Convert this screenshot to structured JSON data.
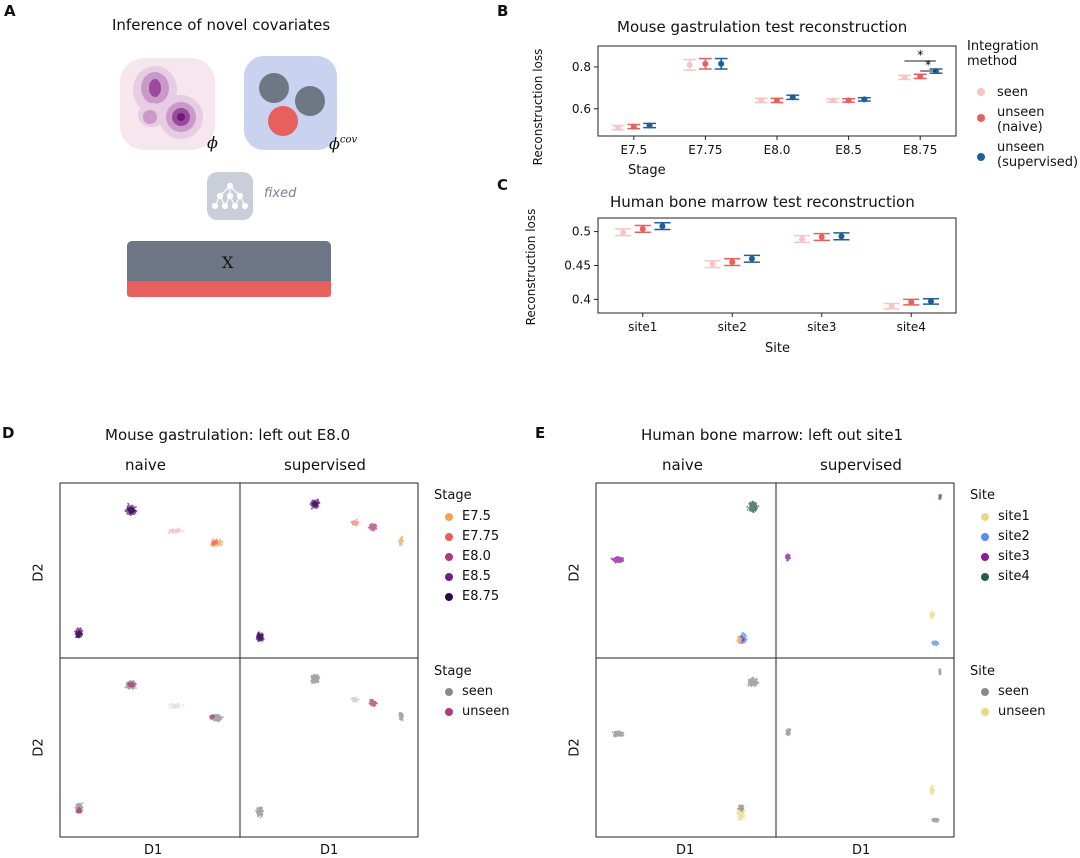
{
  "panel_a": {
    "letter": "A",
    "title": "Inference of novel covariates",
    "phi_label": "ϕ",
    "phi_cov_label": "ϕ",
    "phi_cov_sup": "cov",
    "fixed_label": "fixed",
    "x_label": "X"
  },
  "panel_b": {
    "letter": "B"
  },
  "panel_c": {
    "letter": "C"
  },
  "panel_d": {
    "letter": "D",
    "title": "Mouse gastrulation: left out E8.0",
    "col_naive": "naive",
    "col_supervised": "supervised",
    "xlabel": "D1",
    "ylabel": "D2",
    "legend1_title": "Stage",
    "legend1": [
      "E7.5",
      "E7.75",
      "E8.0",
      "E8.5",
      "E8.75"
    ],
    "legend1_colors": [
      "#f5a05a",
      "#e8605d",
      "#b03a78",
      "#6a1e8a",
      "#2c0a4a"
    ],
    "legend2_title": "Stage",
    "legend2": [
      "seen",
      "unseen"
    ],
    "legend2_colors": [
      "#8a8a8a",
      "#b03a78"
    ]
  },
  "panel_e": {
    "letter": "E",
    "title": "Human bone marrow: left out site1",
    "col_naive": "naive",
    "col_supervised": "supervised",
    "xlabel": "D1",
    "ylabel": "D2",
    "legend1_title": "Site",
    "legend1": [
      "site1",
      "site2",
      "site3",
      "site4"
    ],
    "legend1_colors": [
      "#e8d88a",
      "#5a8ee8",
      "#8a1a9a",
      "#2c5a4a"
    ],
    "legend2_title": "Site",
    "legend2": [
      "seen",
      "unseen"
    ],
    "legend2_colors": [
      "#8a8a8a",
      "#e8d88a"
    ]
  },
  "legend_bc": {
    "title": "Integration method",
    "items": [
      "seen",
      "unseen (naive)",
      "unseen (supervised)"
    ],
    "colors": [
      "#f7c4c4",
      "#e8605d",
      "#1f5f99"
    ]
  },
  "chart_data": [
    {
      "type": "scatter",
      "title": "Mouse gastrulation test reconstruction",
      "xlabel": "Stage",
      "ylabel": "Reconstruction loss",
      "categories": [
        "E7.5",
        "E7.75",
        "E8.0",
        "E8.5",
        "E8.75"
      ],
      "ylim": [
        0.47,
        0.9
      ],
      "yticks": [
        0.6,
        0.8
      ],
      "series": [
        {
          "name": "seen",
          "values": [
            0.51,
            0.81,
            0.64,
            0.64,
            0.75
          ],
          "err": [
            0.01,
            0.025,
            0.01,
            0.008,
            0.01
          ]
        },
        {
          "name": "unseen (naive)",
          "values": [
            0.515,
            0.815,
            0.64,
            0.64,
            0.755
          ],
          "err": [
            0.01,
            0.025,
            0.01,
            0.008,
            0.01
          ]
        },
        {
          "name": "unseen (supervised)",
          "values": [
            0.52,
            0.815,
            0.655,
            0.645,
            0.78
          ],
          "err": [
            0.01,
            0.025,
            0.01,
            0.008,
            0.01
          ]
        }
      ],
      "annotations": [
        "*",
        "*"
      ]
    },
    {
      "type": "scatter",
      "title": "Human bone marrow test reconstruction",
      "xlabel": "Site",
      "ylabel": "Reconstruction loss",
      "categories": [
        "site1",
        "site2",
        "site3",
        "site4"
      ],
      "ylim": [
        0.38,
        0.52
      ],
      "yticks": [
        0.4,
        0.45,
        0.5
      ],
      "series": [
        {
          "name": "seen",
          "values": [
            0.499,
            0.452,
            0.489,
            0.39
          ],
          "err": [
            0.005,
            0.005,
            0.005,
            0.004
          ]
        },
        {
          "name": "unseen (naive)",
          "values": [
            0.504,
            0.455,
            0.492,
            0.396
          ],
          "err": [
            0.005,
            0.005,
            0.005,
            0.004
          ]
        },
        {
          "name": "unseen (supervised)",
          "values": [
            0.508,
            0.46,
            0.493,
            0.397
          ],
          "err": [
            0.005,
            0.005,
            0.005,
            0.004
          ]
        }
      ]
    }
  ]
}
